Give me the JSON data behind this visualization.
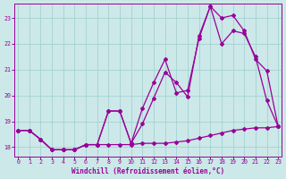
{
  "xlabel": "Windchill (Refroidissement éolien,°C)",
  "background_color": "#cce8e8",
  "line_color": "#990099",
  "x_ticks": [
    0,
    1,
    2,
    3,
    4,
    5,
    6,
    7,
    8,
    9,
    10,
    11,
    12,
    13,
    14,
    15,
    16,
    17,
    18,
    19,
    20,
    21,
    22,
    23
  ],
  "y_ticks": [
    18,
    19,
    20,
    21,
    22,
    23
  ],
  "xlim": [
    -0.3,
    23.3
  ],
  "ylim": [
    17.65,
    23.55
  ],
  "series1_x": [
    0,
    1,
    2,
    3,
    4,
    5,
    6,
    7,
    8,
    9,
    10,
    11,
    12,
    13,
    14,
    15,
    16,
    17,
    18,
    19,
    20,
    21,
    22,
    23
  ],
  "series1_y": [
    18.65,
    18.65,
    18.3,
    17.9,
    17.9,
    17.9,
    18.1,
    18.1,
    18.1,
    18.1,
    18.1,
    18.15,
    18.15,
    18.15,
    18.2,
    18.25,
    18.35,
    18.45,
    18.55,
    18.65,
    18.7,
    18.75,
    18.75,
    18.8
  ],
  "series2_x": [
    0,
    1,
    2,
    3,
    4,
    5,
    6,
    7,
    8,
    9,
    10,
    11,
    12,
    13,
    14,
    15,
    16,
    17,
    18,
    19,
    20,
    21,
    22,
    23
  ],
  "series2_y": [
    18.65,
    18.65,
    18.3,
    17.9,
    17.9,
    17.9,
    18.1,
    18.1,
    19.4,
    19.4,
    18.15,
    18.9,
    19.9,
    20.9,
    20.5,
    19.95,
    22.3,
    23.45,
    22.0,
    22.5,
    22.4,
    21.5,
    19.8,
    18.8
  ],
  "series3_x": [
    0,
    1,
    2,
    3,
    4,
    5,
    6,
    7,
    8,
    9,
    10,
    11,
    12,
    13,
    14,
    15,
    16,
    17,
    18,
    19,
    20,
    21,
    22,
    23
  ],
  "series3_y": [
    18.65,
    18.65,
    18.3,
    17.9,
    17.9,
    17.9,
    18.1,
    18.1,
    19.4,
    19.4,
    18.15,
    19.5,
    20.5,
    21.4,
    20.1,
    20.2,
    22.2,
    23.45,
    23.0,
    23.1,
    22.5,
    21.4,
    20.95,
    18.8
  ]
}
